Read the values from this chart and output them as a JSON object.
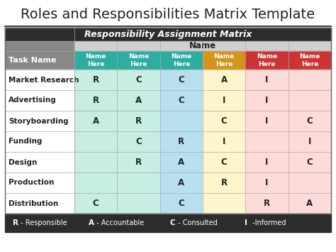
{
  "title": "Roles and Responsibilities Matrix Template",
  "subtitle": "Responsibility Assignment Matrix",
  "col_header_label": "Name",
  "task_col_label": "Task Name",
  "name_headers": [
    "Name\nHere",
    "Name\nHere",
    "Name\nHere",
    "Name\nHere",
    "Name\nHere",
    "Name\nHere"
  ],
  "name_header_colors": [
    "#2bada0",
    "#2fada0",
    "#2bada0",
    "#d4961a",
    "#cc3333",
    "#cc3333"
  ],
  "tasks": [
    "Market Research",
    "Advertising",
    "Storyboarding",
    "Funding",
    "Design",
    "Production",
    "Distribution"
  ],
  "matrix": [
    [
      "R",
      "C",
      "C",
      "A",
      "I",
      ""
    ],
    [
      "R",
      "A",
      "C",
      "I",
      "I",
      ""
    ],
    [
      "A",
      "R",
      "",
      "C",
      "I",
      "C"
    ],
    [
      "",
      "C",
      "R",
      "I",
      "",
      "I"
    ],
    [
      "",
      "R",
      "A",
      "C",
      "I",
      "C"
    ],
    [
      "",
      "",
      "A",
      "R",
      "I",
      ""
    ],
    [
      "C",
      "",
      "C",
      "",
      "R",
      "A"
    ]
  ],
  "col_bg_colors": [
    "#c8ede3",
    "#c8ede3",
    "#b8dff0",
    "#fef5cc",
    "#fddbd8",
    "#fddbd8"
  ],
  "task_col_bg": "#888888",
  "task_name_bg": "#ffffff",
  "header_row_bg": "#d0d0d0",
  "subtitle_bg": "#2c2c2c",
  "footer_bg": "#2c2c2c",
  "legend_letters": [
    "R",
    "A",
    "C",
    "I"
  ],
  "legend_texts": [
    " - Responsible",
    " - Accountable",
    " - Consulted",
    " -Informed"
  ],
  "title_fontsize": 14,
  "subtitle_fontsize": 9,
  "task_fontsize": 7.5,
  "cell_fontsize": 8.5,
  "header_fontsize": 6.5,
  "legend_fontsize": 7
}
